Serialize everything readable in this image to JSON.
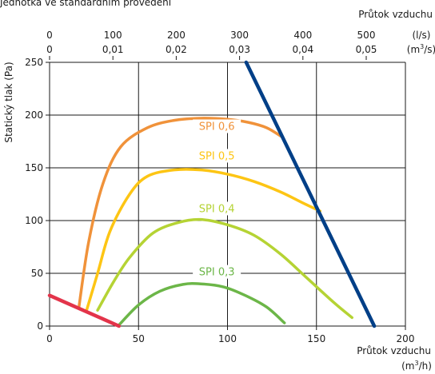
{
  "chart_data": {
    "type": "line",
    "caption_fragment": "Jednotka ve standardním provedení",
    "top_axis_title": "Průtok vzduchu",
    "top_ticks_ls": [
      "0",
      "100",
      "200",
      "300",
      "400",
      "500"
    ],
    "top_ticks_m3s": [
      "0",
      "0,01",
      "0,02",
      "0,03",
      "0,04",
      "0,05"
    ],
    "top_unit_ls": "(l/s)",
    "top_unit_m3s_base": "(m",
    "top_unit_m3s_tail": "/s)",
    "ylabel": "Statický tlak (Pa)",
    "xlabel": "Průtok vzduchu",
    "x_unit_base": "(m",
    "x_unit_tail": "/h)",
    "superscript": "3",
    "x_ticks": [
      "0",
      "50",
      "100",
      "150",
      "200"
    ],
    "y_ticks": [
      "0",
      "50",
      "100",
      "150",
      "200",
      "250"
    ],
    "xlim": [
      0,
      200
    ],
    "ylim": [
      0,
      250
    ],
    "grid": true,
    "series": [
      {
        "name": "SPI 0,6",
        "color": "#f0923a",
        "points": [
          [
            16.5,
            18
          ],
          [
            22,
            80
          ],
          [
            30,
            135
          ],
          [
            40,
            170
          ],
          [
            55,
            188
          ],
          [
            70,
            195
          ],
          [
            85,
            197
          ],
          [
            100,
            196
          ],
          [
            112,
            193
          ],
          [
            122,
            188
          ],
          [
            130,
            180
          ]
        ]
      },
      {
        "name": "SPI 0,5",
        "color": "#fdc514",
        "points": [
          [
            21,
            16
          ],
          [
            27,
            50
          ],
          [
            34,
            90
          ],
          [
            45,
            125
          ],
          [
            55,
            142
          ],
          [
            70,
            148
          ],
          [
            85,
            148
          ],
          [
            100,
            144
          ],
          [
            115,
            137
          ],
          [
            130,
            127
          ],
          [
            142,
            117
          ],
          [
            152,
            109
          ]
        ]
      },
      {
        "name": "SPI 0,4",
        "color": "#b5d334",
        "points": [
          [
            27,
            15
          ],
          [
            36,
            42
          ],
          [
            45,
            65
          ],
          [
            58,
            88
          ],
          [
            72,
            98
          ],
          [
            85,
            101
          ],
          [
            100,
            96
          ],
          [
            115,
            86
          ],
          [
            130,
            68
          ],
          [
            145,
            45
          ],
          [
            160,
            22
          ],
          [
            170,
            8
          ]
        ]
      },
      {
        "name": "SPI 0,3",
        "color": "#6cb648",
        "points": [
          [
            39,
            1
          ],
          [
            50,
            20
          ],
          [
            62,
            33
          ],
          [
            75,
            39.5
          ],
          [
            85,
            40
          ],
          [
            98,
            37
          ],
          [
            110,
            29
          ],
          [
            122,
            18
          ],
          [
            132,
            3
          ]
        ]
      },
      {
        "name": "",
        "color": "#003f87",
        "points": [
          [
            110.5,
            250
          ],
          [
            182.5,
            0
          ]
        ]
      },
      {
        "name": "",
        "color": "#e3344a",
        "points": [
          [
            0,
            29
          ],
          [
            39,
            0
          ]
        ]
      }
    ]
  }
}
